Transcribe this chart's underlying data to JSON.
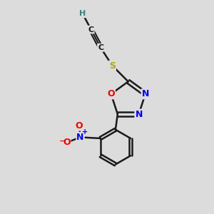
{
  "bg_color": "#dcdcdc",
  "atom_colors": {
    "C": "#1a1a1a",
    "H": "#3d8080",
    "N": "#0000ee",
    "O": "#ee0000",
    "S": "#aaaa00"
  },
  "bond_color": "#1a1a1a",
  "bond_width": 1.8
}
